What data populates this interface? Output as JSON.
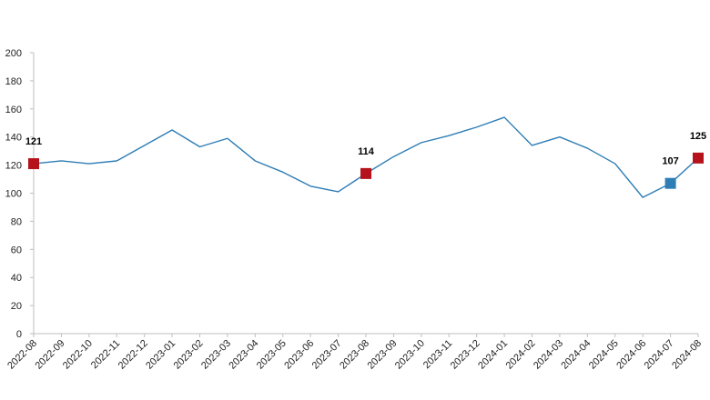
{
  "chart_data": {
    "type": "line",
    "title": "",
    "xlabel": "",
    "ylabel": "",
    "ylim": [
      0,
      200
    ],
    "yticks": [
      0,
      20,
      40,
      60,
      80,
      100,
      120,
      140,
      160,
      180,
      200
    ],
    "grid": false,
    "legend": "none",
    "categories": [
      "2022-08",
      "2022-09",
      "2022-10",
      "2022-11",
      "2022-12",
      "2023-01",
      "2023-02",
      "2023-03",
      "2023-04",
      "2023-05",
      "2023-06",
      "2023-07",
      "2023-08",
      "2023-09",
      "2023-10",
      "2023-11",
      "2023-12",
      "2024-01",
      "2024-02",
      "2024-03",
      "2024-04",
      "2024-05",
      "2024-06",
      "2024-07",
      "2024-08"
    ],
    "series": [
      {
        "values": [
          121,
          123,
          121,
          123,
          134,
          145,
          133,
          139,
          123,
          115,
          105,
          101,
          114,
          126,
          136,
          141,
          147,
          154,
          134,
          140,
          132,
          121,
          97,
          107,
          125
        ],
        "color": "#2e7db5"
      }
    ],
    "markers": [
      {
        "category": "2022-08",
        "value": 121,
        "label": "121",
        "color": "#b5121b"
      },
      {
        "category": "2023-08",
        "value": 114,
        "label": "114",
        "color": "#b5121b"
      },
      {
        "category": "2024-07",
        "value": 107,
        "label": "107",
        "color": "#2e7db5"
      },
      {
        "category": "2024-08",
        "value": 125,
        "label": "125",
        "color": "#b5121b"
      }
    ],
    "axis_color": "#bfbfbf"
  }
}
